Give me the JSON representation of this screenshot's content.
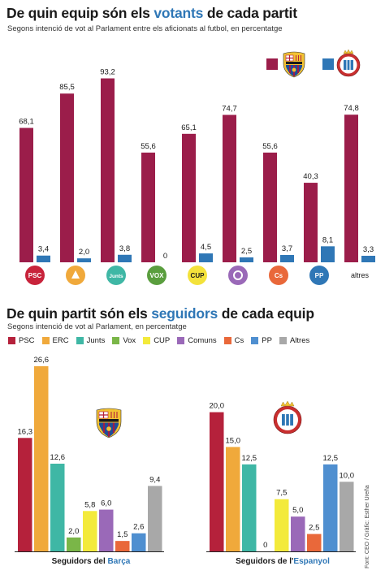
{
  "titles": {
    "top_pre": "De quin equip són els ",
    "top_hl": "votants",
    "top_post": " de cada partit",
    "top_sub": "Segons intenció de vot al Parlament entre els aficionats al futbol, en percentatge",
    "bot_pre": "De quin partit són els ",
    "bot_hl": "seguidors",
    "bot_post": " de cada equip",
    "bot_sub": "Segons intenció de vot al Parlament, en percentatge"
  },
  "credit": "Font: CEO / Gràfic: Esther Ureña",
  "colors": {
    "barca": "#9b1d4a",
    "espanyol": "#2f77b6",
    "highlight": "#2f77b6"
  },
  "icons": {
    "barca_crest": "barca-crest-icon",
    "espanyol_crest": "espanyol-crest-icon"
  },
  "chart_data": [
    {
      "type": "bar",
      "title": "De quin equip són els votants de cada partit",
      "subtitle": "Segons intenció de vot al Parlament entre els aficionats al futbol, en percentatge",
      "categories": [
        "PSC",
        "ERC",
        "Junts",
        "Vox",
        "CUP",
        "Comuns",
        "Cs",
        "PP",
        "altres"
      ],
      "category_logo_labels": [
        "PSC",
        "",
        "Junts",
        "VOX",
        "CUP",
        "",
        "Cs",
        "PP",
        ""
      ],
      "series": [
        {
          "values": [
            68.1,
            85.5,
            93.2,
            55.6,
            65.1,
            74.7,
            55.6,
            40.3,
            74.8
          ],
          "labels": [
            "68,1",
            "85,5",
            "93,2",
            "55,6",
            "65,1",
            "74,7",
            "55,6",
            "40,3",
            "74,8"
          ]
        },
        {
          "values": [
            3.4,
            2.0,
            3.8,
            0,
            4.5,
            2.5,
            3.7,
            8.1,
            3.3
          ],
          "labels": [
            "3,4",
            "2,0",
            "3,8",
            "0",
            "4,5",
            "2,5",
            "3,7",
            "8,1",
            "3,3"
          ]
        }
      ],
      "ylim": [
        0,
        100
      ],
      "legend": "top-right"
    },
    {
      "type": "bar",
      "title": "De quin partit són els seguidors de cada equip",
      "subtitle": "Segons intenció de vot al Parlament, en percentatge",
      "legend": [
        {
          "name": "PSC",
          "color": "#b5213b"
        },
        {
          "name": "ERC",
          "color": "#f0a93b"
        },
        {
          "name": "Junts",
          "color": "#3fb7a5"
        },
        {
          "name": "Vox",
          "color": "#7ab648"
        },
        {
          "name": "CUP",
          "color": "#f3ea3b"
        },
        {
          "name": "Comuns",
          "color": "#9a69b8"
        },
        {
          "name": "Cs",
          "color": "#e9683a"
        },
        {
          "name": "PP",
          "color": "#4f8fd0"
        },
        {
          "name": "Altres",
          "color": "#a8a8a8"
        }
      ],
      "groups": [
        {
          "label_pre": "Seguidors del ",
          "label_hl": "Barça",
          "values": [
            16.3,
            26.6,
            12.6,
            2.0,
            5.8,
            6.0,
            1.5,
            2.6,
            9.4
          ],
          "labels": [
            "16,3",
            "26,6",
            "12,6",
            "2,0",
            "5,8",
            "6,0",
            "1,5",
            "2,6",
            "9,4"
          ]
        },
        {
          "label_pre": "Seguidors de l'",
          "label_hl": "Espanyol",
          "values": [
            20.0,
            15.0,
            12.5,
            0,
            7.5,
            5.0,
            2.5,
            12.5,
            10.0
          ],
          "labels": [
            "20,0",
            "15,0",
            "12,5",
            "0",
            "7,5",
            "5,0",
            "2,5",
            "12,5",
            "10,0"
          ]
        }
      ],
      "ylim": [
        0,
        28
      ]
    }
  ]
}
